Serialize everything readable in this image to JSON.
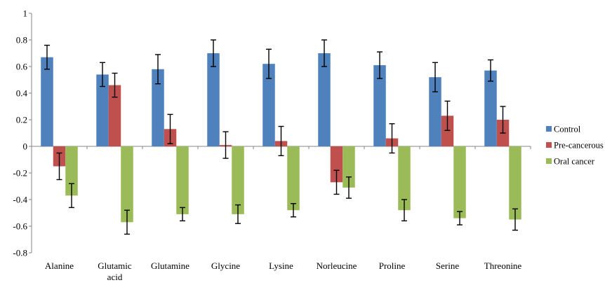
{
  "chart_data": {
    "type": "bar",
    "title": "",
    "xlabel": "",
    "ylabel": "",
    "ylim": [
      -0.8,
      1
    ],
    "yticks": [
      "1",
      "0.8",
      "0.6",
      "0.4",
      "0.2",
      "0",
      "-0.2",
      "-0.4",
      "-0.6",
      "-0.8"
    ],
    "categories": [
      "Alanine",
      "Glutamic\nacid",
      "Glutamine",
      "Glycine",
      "Lysine",
      "Norleucine",
      "Proline",
      "Serine",
      "Threonine"
    ],
    "series": [
      {
        "name": "Control",
        "color": "#4f81bd",
        "values": [
          0.67,
          0.54,
          0.58,
          0.7,
          0.62,
          0.7,
          0.61,
          0.52,
          0.57
        ],
        "errors": [
          0.09,
          0.09,
          0.11,
          0.1,
          0.11,
          0.1,
          0.1,
          0.11,
          0.08
        ]
      },
      {
        "name": "Pre-cancerous",
        "color": "#c0504d",
        "values": [
          -0.15,
          0.46,
          0.13,
          0.01,
          0.04,
          -0.27,
          0.06,
          0.23,
          0.2
        ],
        "errors": [
          0.1,
          0.09,
          0.11,
          0.1,
          0.11,
          0.09,
          0.11,
          0.11,
          0.1
        ]
      },
      {
        "name": "Oral cancer",
        "color": "#9bbb59",
        "values": [
          -0.37,
          -0.57,
          -0.51,
          -0.51,
          -0.48,
          -0.31,
          -0.48,
          -0.54,
          -0.55
        ],
        "errors": [
          0.09,
          0.09,
          0.05,
          0.07,
          0.05,
          0.08,
          0.08,
          0.05,
          0.08
        ]
      }
    ],
    "legend_position": "right",
    "grid": false
  }
}
